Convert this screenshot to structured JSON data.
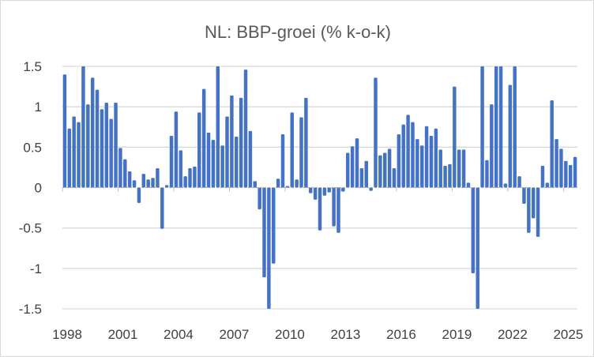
{
  "chart_data": {
    "type": "bar",
    "title": "NL: BBP-groei (% k-o-k)",
    "xlabel": "",
    "ylabel": "",
    "ylim": [
      -1.5,
      1.5
    ],
    "yticks": [
      "1.5",
      "1",
      "0.5",
      "0",
      "-0.5",
      "-1",
      "-1.5"
    ],
    "ytick_values": [
      1.5,
      1,
      0.5,
      0,
      -0.5,
      -1,
      -1.5
    ],
    "xticks": [
      "1998",
      "2001",
      "2004",
      "2007",
      "2010",
      "2013",
      "2016",
      "2019",
      "2022",
      "2025"
    ],
    "start_year": 1998,
    "frequency": "quarterly",
    "grid": true,
    "bar_color": "#4472c4",
    "values": [
      1.4,
      0.73,
      0.88,
      0.81,
      1.6,
      1.03,
      1.36,
      1.21,
      0.97,
      1.05,
      0.85,
      1.05,
      0.49,
      0.35,
      0.2,
      0.09,
      -0.19,
      0.17,
      0.1,
      0.12,
      0.24,
      -0.51,
      0.03,
      0.64,
      0.94,
      0.46,
      0.14,
      0.24,
      0.26,
      0.93,
      1.22,
      0.68,
      0.59,
      1.6,
      0.52,
      0.88,
      1.14,
      0.63,
      1.11,
      1.46,
      0.7,
      0.08,
      -0.27,
      -1.11,
      -1.6,
      -0.94,
      0.11,
      0.66,
      0.02,
      0.93,
      0.1,
      0.87,
      1.11,
      -0.07,
      -0.15,
      -0.53,
      -0.1,
      -0.06,
      -0.48,
      -0.56,
      -0.05,
      0.43,
      0.51,
      0.61,
      0.24,
      0.33,
      -0.04,
      1.36,
      0.4,
      0.43,
      0.48,
      0.24,
      0.66,
      0.78,
      0.9,
      0.81,
      0.6,
      0.52,
      0.76,
      0.64,
      0.73,
      0.47,
      0.27,
      0.29,
      1.25,
      0.47,
      0.47,
      0.06,
      -1.06,
      -1.6,
      1.6,
      0.34,
      1.03,
      1.6,
      1.6,
      0.05,
      1.27,
      1.6,
      0.14,
      -0.2,
      -0.56,
      -0.38,
      -0.61,
      0.27,
      0.06,
      1.08,
      0.6,
      0.48,
      0.33,
      0.28,
      0.38
    ]
  }
}
